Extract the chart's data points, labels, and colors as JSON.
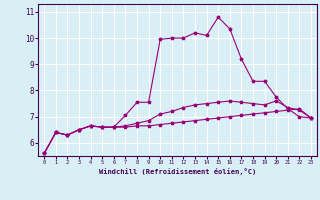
{
  "xlabel": "Windchill (Refroidissement éolien,°C)",
  "bg_color": "#d8eff5",
  "grid_color": "#ffffff",
  "line_color": "#990077",
  "xlim": [
    -0.5,
    23.5
  ],
  "ylim": [
    5.5,
    11.3
  ],
  "yticks": [
    6,
    7,
    8,
    9,
    10,
    11
  ],
  "xticks": [
    0,
    1,
    2,
    3,
    4,
    5,
    6,
    7,
    8,
    9,
    10,
    11,
    12,
    13,
    14,
    15,
    16,
    17,
    18,
    19,
    20,
    21,
    22,
    23
  ],
  "series": [
    [
      5.6,
      6.4,
      6.3,
      6.5,
      6.65,
      6.6,
      6.6,
      7.05,
      7.55,
      7.55,
      9.95,
      10.0,
      10.0,
      10.2,
      10.1,
      10.8,
      10.35,
      9.2,
      8.35,
      8.35,
      7.75,
      7.3,
      7.0,
      6.95
    ],
    [
      5.6,
      6.4,
      6.3,
      6.5,
      6.65,
      6.6,
      6.6,
      6.6,
      6.65,
      6.65,
      6.7,
      6.75,
      6.8,
      6.85,
      6.9,
      6.95,
      7.0,
      7.05,
      7.1,
      7.15,
      7.2,
      7.25,
      7.3,
      6.95
    ],
    [
      5.6,
      6.4,
      6.3,
      6.5,
      6.65,
      6.6,
      6.6,
      6.65,
      6.75,
      6.85,
      7.1,
      7.2,
      7.35,
      7.45,
      7.5,
      7.55,
      7.6,
      7.55,
      7.5,
      7.45,
      7.6,
      7.35,
      7.25,
      6.95
    ]
  ]
}
